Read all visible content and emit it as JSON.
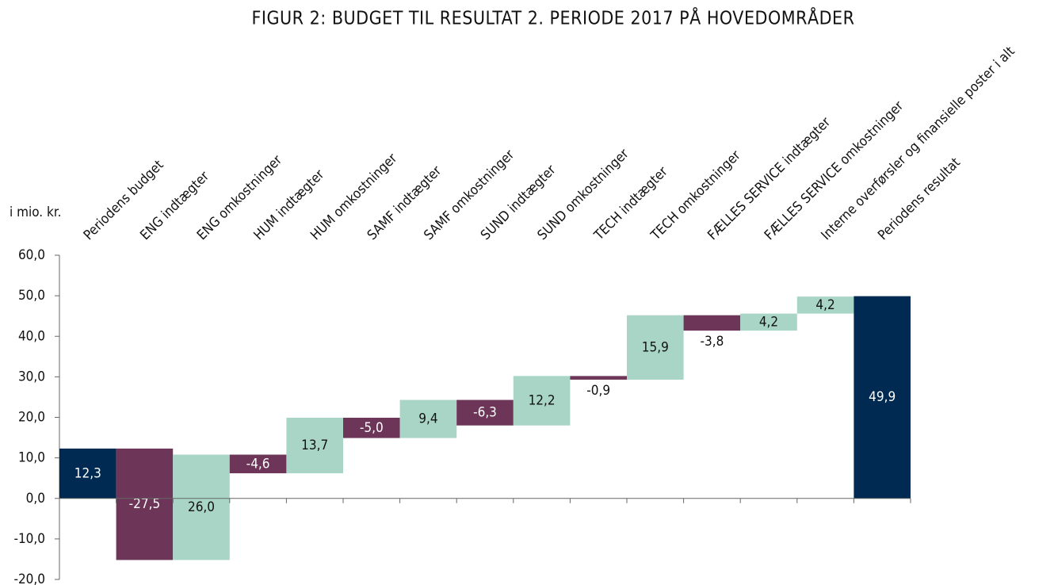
{
  "chart_data": {
    "type": "waterfall",
    "title": "FIGUR 2: BUDGET TIL RESULTAT 2. PERIODE 2017 PÅ HOVEDOMRÅDER",
    "y_axis_label": "i mio. kr.",
    "categories": [
      "Periodens budget",
      "ENG indtægter",
      "ENG omkostninger",
      "HUM indtægter",
      "HUM omkostninger",
      "SAMF indtægter",
      "SAMF omkostninger",
      "SUND indtægter",
      "SUND omkostninger",
      "TECH indtægter",
      "TECH omkostninger",
      "FÆLLES SERVICE indtægter",
      "FÆLLES SERVICE omkostninger",
      "Interne overførsler og finansielle poster i alt",
      "Periodens resultat"
    ],
    "values": [
      12.3,
      -27.5,
      26.0,
      -4.6,
      13.7,
      -5.0,
      9.4,
      -6.3,
      12.2,
      -0.9,
      15.9,
      -3.8,
      4.2,
      4.2,
      49.9
    ],
    "value_labels": [
      "12,3",
      "-27,5",
      "26,0",
      "-4,6",
      "13,7",
      "-5,0",
      "9,4",
      "-6,3",
      "12,2",
      "-0,9",
      "15,9",
      "-3,8",
      "4,2",
      "4,2",
      "49,9"
    ],
    "is_total": [
      true,
      false,
      false,
      false,
      false,
      false,
      false,
      false,
      false,
      false,
      false,
      false,
      false,
      false,
      true
    ],
    "colors": {
      "total": "#002a52",
      "increase": "#a8d5c6",
      "decrease": "#6d3658"
    },
    "ylim": [
      -20,
      60
    ],
    "yticks": [
      {
        "value": -20,
        "label": "-20,0"
      },
      {
        "value": -10,
        "label": "-10,0"
      },
      {
        "value": 0,
        "label": "0,0"
      },
      {
        "value": 10,
        "label": "10,0"
      },
      {
        "value": 20,
        "label": "20,0"
      },
      {
        "value": 30,
        "label": "30,0"
      },
      {
        "value": 40,
        "label": "40,0"
      },
      {
        "value": 50,
        "label": "50,0"
      },
      {
        "value": 60,
        "label": "60,0"
      }
    ]
  }
}
